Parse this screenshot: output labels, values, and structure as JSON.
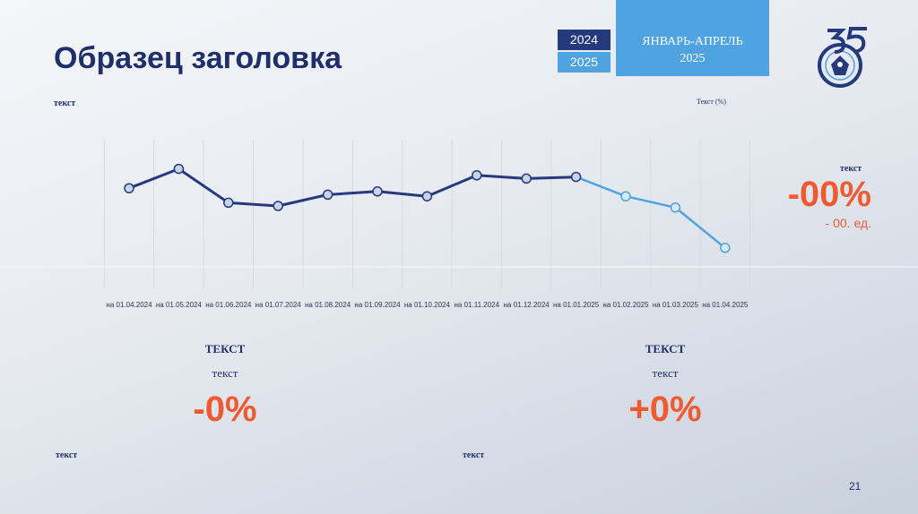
{
  "slide": {
    "title": "Образец заголовка",
    "year_current": "2024",
    "year_next": "2025",
    "period_line1": "ЯНВАРЬ-АПРЕЛЬ",
    "period_line2": "2025",
    "left_label": "текст",
    "right_label": "Текст (%)",
    "page_number": "21"
  },
  "side_stat": {
    "label": "текст",
    "value": "-00%",
    "unit": "- 00. ед."
  },
  "stats": [
    {
      "heading": "ТЕКСТ",
      "sub": "текст",
      "value": "-0%",
      "note": "текст"
    },
    {
      "heading": "ТЕКСТ",
      "sub": "текст",
      "value": "+0%",
      "note": "текст"
    }
  ],
  "colors": {
    "title": "#1f2f6a",
    "series_2024": "#253a7d",
    "series_2025": "#4fa3e0",
    "accent": "#f05a30"
  },
  "chart_data": {
    "type": "line",
    "categories": [
      "на 01.04.2024",
      "на 01.05.2024",
      "на 01.06.2024",
      "на 01.07.2024",
      "на 01.08.2024",
      "на 01.09.2024",
      "на 01.10.2024",
      "на 01.11.2024",
      "на 01.12.2024",
      "на 01.01.2025",
      "на 01.02.2025",
      "на 01.03.2025",
      "на 01.04.2025"
    ],
    "series": [
      {
        "values": [
          61,
          73,
          52,
          50,
          57,
          59,
          56,
          69,
          67,
          68,
          null,
          null,
          null
        ]
      },
      {
        "values": [
          null,
          null,
          null,
          null,
          null,
          null,
          null,
          null,
          null,
          68,
          56,
          49,
          24
        ]
      }
    ],
    "ylim": [
      0,
      100
    ],
    "grid": "vertical",
    "title": "",
    "xlabel": "",
    "ylabel": ""
  }
}
